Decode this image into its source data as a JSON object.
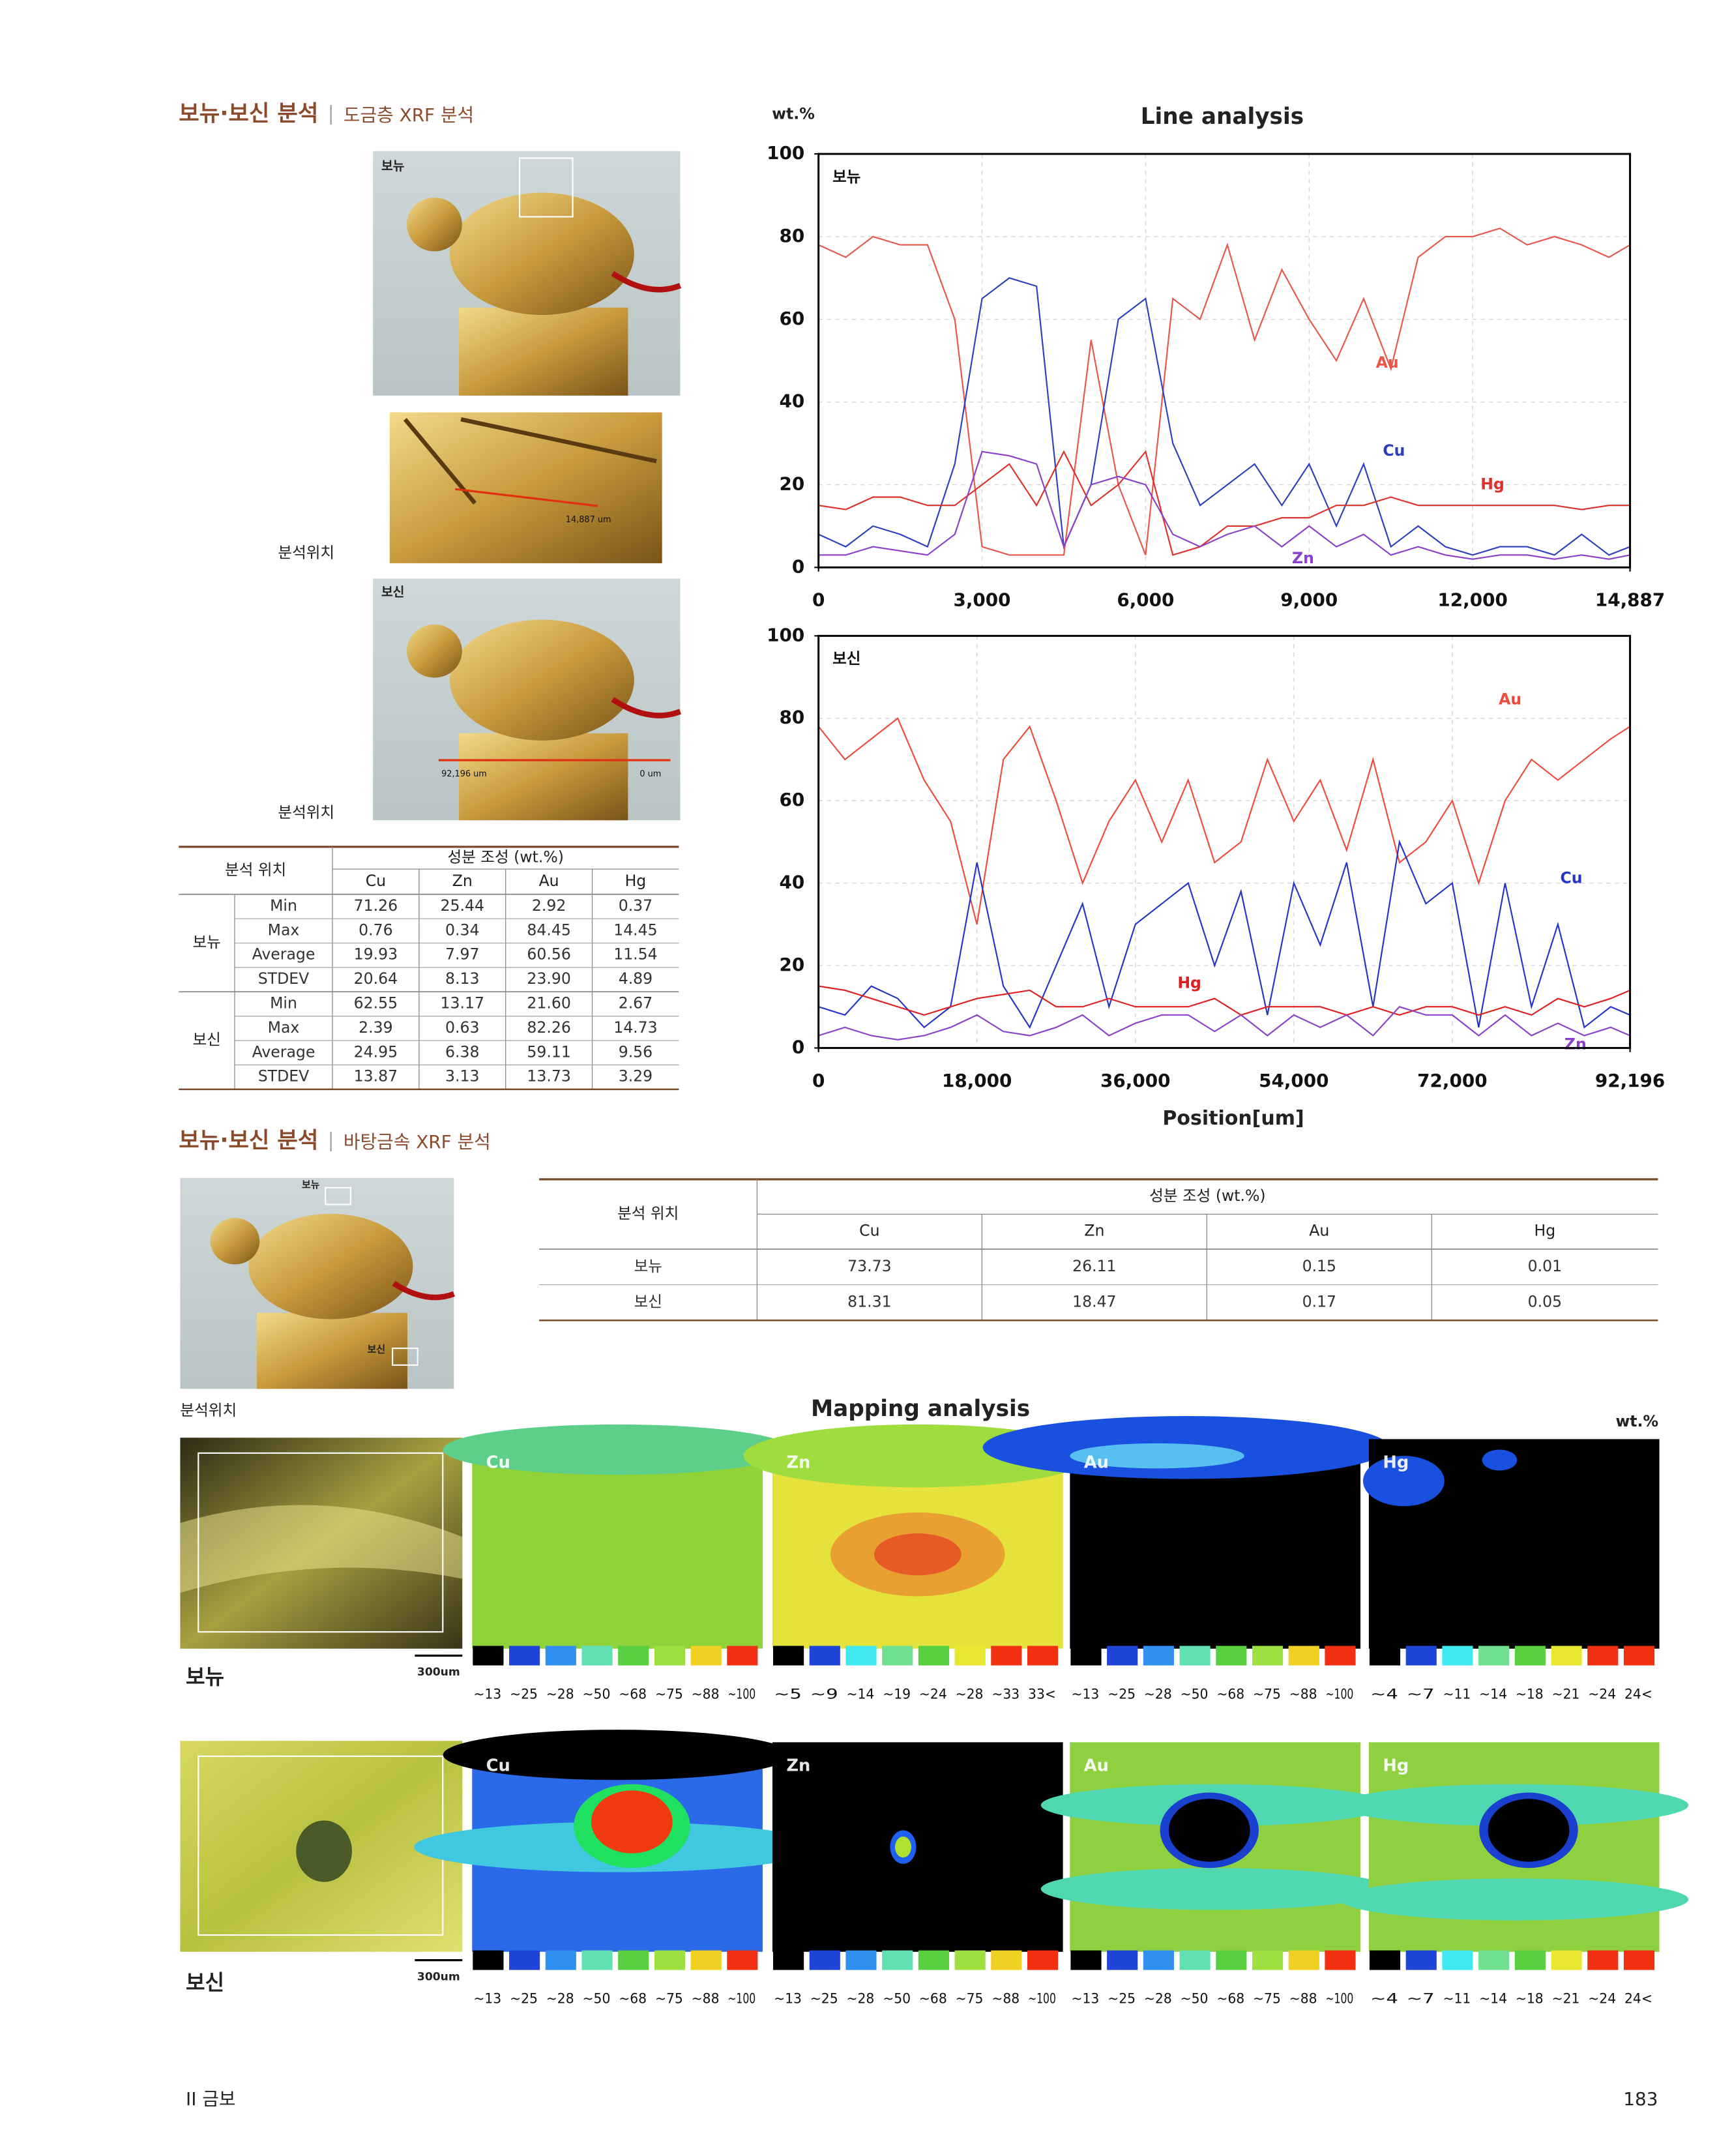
{
  "section1": {
    "title": "보뉴·보신 분석",
    "subtitle": "도금층 XRF 분석"
  },
  "photos1": {
    "bonyu_label": "보뉴",
    "bosin_label": "보신",
    "closeup_length": "14,887 um",
    "line_start": "92,196 um",
    "line_end": "0 um",
    "caption_1": "분석위치",
    "caption_2": "분석위치"
  },
  "table1": {
    "location_header": "분석 위치",
    "composition_header": "성분 조성 (wt.%)",
    "elements": [
      "Cu",
      "Zn",
      "Au",
      "Hg"
    ],
    "groups": [
      {
        "name": "보뉴",
        "rows": [
          [
            "Min",
            "71.26",
            "25.44",
            "2.92",
            "0.37"
          ],
          [
            "Max",
            "0.76",
            "0.34",
            "84.45",
            "14.45"
          ],
          [
            "Average",
            "19.93",
            "7.97",
            "60.56",
            "11.54"
          ],
          [
            "STDEV",
            "20.64",
            "8.13",
            "23.90",
            "4.89"
          ]
        ]
      },
      {
        "name": "보신",
        "rows": [
          [
            "Min",
            "62.55",
            "13.17",
            "21.60",
            "2.67"
          ],
          [
            "Max",
            "2.39",
            "0.63",
            "82.26",
            "14.73"
          ],
          [
            "Average",
            "24.95",
            "6.38",
            "59.11",
            "9.56"
          ],
          [
            "STDEV",
            "13.87",
            "3.13",
            "13.73",
            "3.29"
          ]
        ]
      }
    ]
  },
  "line_analysis": {
    "title": "Line analysis",
    "unit": "wt.%",
    "x_label": "Position[um]"
  },
  "chart_data": [
    {
      "type": "line",
      "label": "보뉴",
      "grid": true,
      "xlim": [
        0,
        14887
      ],
      "xticks": [
        0,
        {
          "value": 3000,
          "label": "3,000"
        },
        {
          "value": 6000,
          "label": "6,000"
        },
        {
          "value": 9000,
          "label": "9,000"
        },
        {
          "value": 12000,
          "label": "12,000"
        },
        {
          "value": 14887,
          "label": "14,887"
        }
      ],
      "ylim": [
        0,
        100
      ],
      "yticks": [
        0,
        20,
        40,
        60,
        80,
        100
      ],
      "x": [
        0,
        500,
        1000,
        1500,
        2000,
        2500,
        3000,
        3500,
        4000,
        4500,
        5000,
        5500,
        6000,
        6500,
        7000,
        7500,
        8000,
        8500,
        9000,
        9500,
        10000,
        10500,
        11000,
        11500,
        12000,
        12500,
        13000,
        13500,
        14000,
        14500,
        14887
      ],
      "series": [
        {
          "name": "Au",
          "color": "#e8564a",
          "values": [
            78,
            75,
            80,
            78,
            78,
            60,
            5,
            3,
            3,
            3,
            55,
            20,
            3,
            65,
            60,
            78,
            55,
            72,
            60,
            50,
            65,
            48,
            75,
            80,
            80,
            82,
            78,
            80,
            78,
            75,
            78
          ]
        },
        {
          "name": "Cu",
          "color": "#2b3fbf",
          "values": [
            8,
            5,
            10,
            8,
            5,
            25,
            65,
            70,
            68,
            5,
            20,
            60,
            65,
            30,
            15,
            20,
            25,
            15,
            25,
            10,
            25,
            5,
            10,
            5,
            3,
            5,
            5,
            3,
            8,
            3,
            5
          ]
        },
        {
          "name": "Hg",
          "color": "#e0302a",
          "values": [
            15,
            14,
            17,
            17,
            15,
            15,
            20,
            25,
            15,
            28,
            15,
            20,
            28,
            3,
            5,
            10,
            10,
            12,
            12,
            15,
            15,
            17,
            15,
            15,
            15,
            15,
            15,
            15,
            14,
            15,
            15
          ]
        },
        {
          "name": "Zn",
          "color": "#8a40c8",
          "values": [
            3,
            3,
            5,
            4,
            3,
            8,
            28,
            27,
            25,
            5,
            20,
            22,
            20,
            8,
            5,
            8,
            10,
            5,
            10,
            5,
            8,
            3,
            5,
            3,
            2,
            3,
            3,
            2,
            3,
            2,
            3
          ]
        }
      ]
    },
    {
      "type": "line",
      "label": "보신",
      "grid": true,
      "xlim": [
        0,
        92196
      ],
      "xticks": [
        0,
        {
          "value": 18000,
          "label": "18,000"
        },
        {
          "value": 36000,
          "label": "36,000"
        },
        {
          "value": 54000,
          "label": "54,000"
        },
        {
          "value": 72000,
          "label": "72,000"
        },
        {
          "value": 92196,
          "label": "92,196"
        }
      ],
      "ylim": [
        0,
        100
      ],
      "yticks": [
        0,
        20,
        40,
        60,
        80,
        100
      ],
      "x": [
        0,
        3000,
        6000,
        9000,
        12000,
        15000,
        18000,
        21000,
        24000,
        27000,
        30000,
        33000,
        36000,
        39000,
        42000,
        45000,
        48000,
        51000,
        54000,
        57000,
        60000,
        63000,
        66000,
        69000,
        72000,
        75000,
        78000,
        81000,
        84000,
        87000,
        90000,
        92196
      ],
      "series": [
        {
          "name": "Au",
          "color": "#f04a3a",
          "values": [
            78,
            70,
            75,
            80,
            65,
            55,
            30,
            70,
            78,
            60,
            40,
            55,
            65,
            50,
            65,
            45,
            50,
            70,
            55,
            65,
            48,
            70,
            45,
            50,
            60,
            40,
            60,
            70,
            65,
            70,
            75,
            78
          ]
        },
        {
          "name": "Cu",
          "color": "#2434c8",
          "values": [
            10,
            8,
            15,
            12,
            5,
            10,
            45,
            15,
            5,
            20,
            35,
            10,
            30,
            35,
            40,
            20,
            38,
            8,
            40,
            25,
            45,
            10,
            50,
            35,
            40,
            5,
            40,
            10,
            30,
            5,
            10,
            8
          ]
        },
        {
          "name": "Hg",
          "color": "#e01e1e",
          "values": [
            15,
            14,
            12,
            10,
            8,
            10,
            12,
            13,
            14,
            10,
            10,
            12,
            10,
            10,
            10,
            12,
            8,
            10,
            10,
            10,
            8,
            10,
            8,
            10,
            10,
            8,
            10,
            8,
            12,
            10,
            12,
            14
          ]
        },
        {
          "name": "Zn",
          "color": "#8a40c8",
          "values": [
            3,
            5,
            3,
            2,
            3,
            5,
            8,
            4,
            3,
            5,
            8,
            3,
            6,
            8,
            8,
            4,
            8,
            3,
            8,
            5,
            8,
            3,
            10,
            8,
            8,
            3,
            8,
            3,
            6,
            3,
            5,
            3
          ]
        }
      ]
    }
  ],
  "section2": {
    "title": "보뉴·보신 분석",
    "subtitle": "바탕금속 XRF 분석"
  },
  "photos2": {
    "bonyu_label": "보뉴",
    "bosin_label": "보신",
    "caption": "분석위치"
  },
  "table2": {
    "location_header": "분석 위치",
    "composition_header": "성분 조성 (wt.%)",
    "elements": [
      "Cu",
      "Zn",
      "Au",
      "Hg"
    ],
    "rows": [
      [
        "보뉴",
        "73.73",
        "26.11",
        "0.15",
        "0.01"
      ],
      [
        "보신",
        "81.31",
        "18.47",
        "0.17",
        "0.05"
      ]
    ]
  },
  "mapping": {
    "title": "Mapping analysis",
    "unit": "wt.%",
    "rows": [
      {
        "label": "보뉴",
        "scale": "300um",
        "maps": [
          {
            "element": "Cu",
            "legend": [
              "~13",
              "~25",
              "~28",
              "~50",
              "~68",
              "~75",
              "~88",
              "~100"
            ],
            "colors": [
              "#000000",
              "#1f45d8",
              "#3090f0",
              "#60e0b0",
              "#58d040",
              "#9ee040",
              "#f0d020",
              "#f03010"
            ]
          },
          {
            "element": "Zn",
            "legend": [
              "~5",
              "~9",
              "~14",
              "~19",
              "~24",
              "~28",
              "~33",
              "33<"
            ],
            "colors": [
              "#000000",
              "#1f45d8",
              "#40e8f0",
              "#70e090",
              "#58d040",
              "#e8e830",
              "#f03010",
              "#f03010"
            ]
          },
          {
            "element": "Au",
            "legend": [
              "~13",
              "~25",
              "~28",
              "~50",
              "~68",
              "~75",
              "~88",
              "~100"
            ],
            "colors": [
              "#000000",
              "#1f45d8",
              "#3090f0",
              "#60e0b0",
              "#58d040",
              "#9ee040",
              "#f0d020",
              "#f03010"
            ]
          },
          {
            "element": "Hg",
            "legend": [
              "~4",
              "~7",
              "~11",
              "~14",
              "~18",
              "~21",
              "~24",
              "24<"
            ],
            "colors": [
              "#000000",
              "#1f45d8",
              "#40e8f0",
              "#70e090",
              "#58d040",
              "#e8e830",
              "#f03010",
              "#f03010"
            ]
          }
        ]
      },
      {
        "label": "보신",
        "scale": "300um",
        "maps": [
          {
            "element": "Cu",
            "legend": [
              "~13",
              "~25",
              "~28",
              "~50",
              "~68",
              "~75",
              "~88",
              "~100"
            ],
            "colors": [
              "#000000",
              "#1f45d8",
              "#3090f0",
              "#60e0b0",
              "#58d040",
              "#9ee040",
              "#f0d020",
              "#f03010"
            ]
          },
          {
            "element": "Zn",
            "legend": [
              "~13",
              "~25",
              "~28",
              "~50",
              "~68",
              "~75",
              "~88",
              "~100"
            ],
            "colors": [
              "#000000",
              "#1f45d8",
              "#3090f0",
              "#60e0b0",
              "#58d040",
              "#9ee040",
              "#f0d020",
              "#f03010"
            ]
          },
          {
            "element": "Au",
            "legend": [
              "~13",
              "~25",
              "~28",
              "~50",
              "~68",
              "~75",
              "~88",
              "~100"
            ],
            "colors": [
              "#000000",
              "#1f45d8",
              "#3090f0",
              "#60e0b0",
              "#58d040",
              "#9ee040",
              "#f0d020",
              "#f03010"
            ]
          },
          {
            "element": "Hg",
            "legend": [
              "~4",
              "~7",
              "~11",
              "~14",
              "~18",
              "~21",
              "~24",
              "24<"
            ],
            "colors": [
              "#000000",
              "#1f45d8",
              "#40e8f0",
              "#70e090",
              "#58d040",
              "#e8e830",
              "#f03010",
              "#f03010"
            ]
          }
        ]
      }
    ]
  },
  "footer": {
    "chapter": "II 금보",
    "page": "183"
  }
}
